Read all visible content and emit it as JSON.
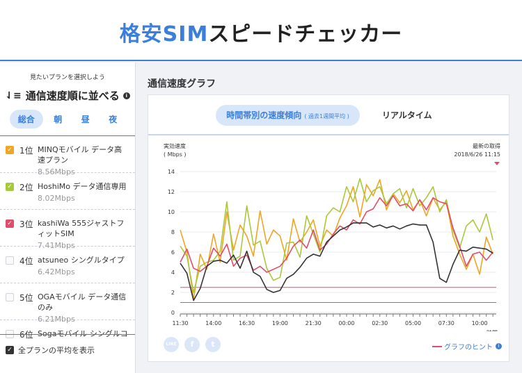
{
  "header": {
    "logo_prefix": "格安SIM",
    "logo_suffix": "スピードチェッカー"
  },
  "sidebar": {
    "select_label": "見たいプランを選択しよう",
    "sort_label": "通信速度順に並べる",
    "time_tabs": [
      "総合",
      "朝",
      "昼",
      "夜"
    ],
    "plans": [
      {
        "rank": "1位",
        "name": "MINQモバイル データ高速プラン",
        "speed": "8.56Mbps",
        "checked": true,
        "color": "#f0a524"
      },
      {
        "rank": "2位",
        "name": "HoshiMo データ通信専用",
        "speed": "8.02Mbps",
        "checked": true,
        "color": "#a8c93a"
      },
      {
        "rank": "3位",
        "name": "kashiWa 555ジャストフィットSIM",
        "speed": "7.41Mbps",
        "checked": true,
        "color": "#e24c6a"
      },
      {
        "rank": "4位",
        "name": "atsuneo シングルタイプ",
        "speed": "6.42Mbps",
        "checked": false,
        "color": ""
      },
      {
        "rank": "5位",
        "name": "OGAモバイル データ通信のみ",
        "speed": "6.21Mbps",
        "checked": false,
        "color": ""
      },
      {
        "rank": "6位",
        "name": "Sogaモバイル シングルコ",
        "speed": "",
        "checked": false,
        "color": ""
      }
    ],
    "show_average_label": "全プランの平均を表示"
  },
  "main": {
    "title": "通信速度グラフ",
    "tab_time": "時間帯別の速度傾向",
    "tab_time_sub": "( 過去1週間平均 )",
    "tab_realtime": "リアルタイム",
    "hint_label": "グラフのヒント",
    "social": [
      "LINE",
      "f",
      "t"
    ]
  },
  "chart_data": {
    "type": "line",
    "ylabel": "実効速度",
    "yunit": "( Mbps )",
    "xlabel": "時間",
    "update_label": "最新の取得",
    "update_time": "2018/6/26 11:15",
    "ylim": [
      0,
      14
    ],
    "yticks": [
      0,
      2,
      4,
      6,
      8,
      10,
      12,
      14
    ],
    "xlim": [
      11.5,
      35.25
    ],
    "xticks": [
      "11:30",
      "14:00",
      "16:30",
      "19:00",
      "21:30",
      "00:00",
      "02:30",
      "05:00",
      "07:30",
      "10:00"
    ],
    "xtick_hours": [
      11.5,
      14,
      16.5,
      19,
      21.5,
      24,
      26.5,
      29,
      31.5,
      34
    ],
    "ref_lines": [
      {
        "value": 2.5,
        "color": "#e24c6a"
      },
      {
        "value": 1.0,
        "color": "#e24c6a"
      }
    ],
    "series": [
      {
        "name": "MINQモバイル",
        "color": "#f0a524",
        "x": [
          11.5,
          12,
          12.5,
          13,
          13.5,
          14,
          14.5,
          15,
          15.5,
          16,
          16.5,
          17,
          17.5,
          18,
          18.5,
          19,
          19.5,
          20,
          20.5,
          21,
          21.5,
          22,
          22.5,
          23,
          23.5,
          24,
          24.5,
          25,
          25.5,
          26,
          26.5,
          27,
          27.5,
          28,
          28.5,
          29,
          29.5,
          30,
          30.5,
          31,
          31.5,
          32,
          32.5,
          33,
          33.5,
          34,
          34.5,
          35
        ],
        "y": [
          8.2,
          6.0,
          1.3,
          5.8,
          4.3,
          7.8,
          5.0,
          10.0,
          6.2,
          8.7,
          7.6,
          5.6,
          10.1,
          6.8,
          8.2,
          7.6,
          5.2,
          9.3,
          7.0,
          8.0,
          9.2,
          6.6,
          8.2,
          7.6,
          9.4,
          10.6,
          12.5,
          9.5,
          12.7,
          11.6,
          13.2,
          10.2,
          11.8,
          10.9,
          12.1,
          10.2,
          11.2,
          9.6,
          11.4,
          10.2,
          11.0,
          7.6,
          5.8,
          4.3,
          5.8,
          3.8,
          7.5,
          5.8
        ]
      },
      {
        "name": "HoshiMo",
        "color": "#a8c93a",
        "x": [
          11.5,
          12,
          12.5,
          13,
          13.5,
          14,
          14.5,
          15,
          15.5,
          16,
          16.5,
          17,
          17.5,
          18,
          18.5,
          19,
          19.5,
          20,
          20.5,
          21,
          21.5,
          22,
          22.5,
          23,
          23.5,
          24,
          24.5,
          25,
          25.5,
          26,
          26.5,
          27,
          27.5,
          28,
          28.5,
          29,
          29.5,
          30,
          30.5,
          31,
          31.5,
          32,
          32.5,
          33,
          33.5,
          34,
          34.5,
          35
        ],
        "y": [
          6.6,
          5.6,
          2.0,
          4.6,
          5.0,
          5.2,
          6.1,
          11.0,
          5.2,
          5.6,
          10.6,
          6.7,
          7.1,
          4.4,
          3.2,
          3.5,
          6.9,
          7.0,
          5.5,
          9.6,
          7.8,
          6.0,
          9.6,
          10.4,
          10.0,
          12.5,
          11.0,
          13.3,
          11.0,
          12.1,
          12.5,
          10.8,
          11.8,
          12.3,
          10.4,
          12.3,
          10.6,
          11.4,
          12.5,
          10.0,
          11.2,
          8.2,
          6.4,
          8.6,
          9.2,
          8.0,
          9.8,
          7.2
        ]
      },
      {
        "name": "kashiWa",
        "color": "#e24c6a",
        "x": [
          11.5,
          12,
          12.5,
          13,
          13.5,
          14,
          14.5,
          15,
          15.5,
          16,
          16.5,
          17,
          17.5,
          18,
          18.5,
          19,
          19.5,
          20,
          20.5,
          21,
          21.5,
          22,
          22.5,
          23,
          23.5,
          24,
          24.5,
          25,
          25.5,
          26,
          26.5,
          27,
          27.5,
          28,
          28.5,
          29,
          29.5,
          30,
          30.5,
          31,
          31.5,
          32,
          32.5,
          33,
          33.5,
          34,
          34.5,
          35
        ],
        "y": [
          5.0,
          6.3,
          4.4,
          4.1,
          4.6,
          6.4,
          5.6,
          6.8,
          4.6,
          5.4,
          5.7,
          4.2,
          4.6,
          4.0,
          4.3,
          4.6,
          5.4,
          6.6,
          7.2,
          6.4,
          8.2,
          6.2,
          6.8,
          7.8,
          8.6,
          8.2,
          9.2,
          8.8,
          10.0,
          10.3,
          11.4,
          10.6,
          11.6,
          10.6,
          10.8,
          10.1,
          11.2,
          10.2,
          11.4,
          11.0,
          10.8,
          8.4,
          6.6,
          4.6,
          5.8,
          6.0,
          5.2,
          6.0
        ]
      },
      {
        "name": "全プランの平均",
        "color": "#333333",
        "x": [
          11.5,
          12,
          12.5,
          13,
          13.5,
          14,
          14.5,
          15,
          15.5,
          16,
          16.5,
          17,
          17.5,
          18,
          18.5,
          19,
          19.5,
          20,
          20.5,
          21,
          21.5,
          22,
          22.5,
          23,
          23.5,
          24,
          24.5,
          25,
          25.5,
          26,
          26.5,
          27,
          27.5,
          28,
          28.5,
          29,
          29.5,
          30,
          30.5,
          31,
          31.5,
          32,
          32.5,
          33,
          33.5,
          34,
          34.5,
          35
        ],
        "y": [
          4.9,
          3.9,
          1.2,
          2.4,
          4.6,
          5.1,
          5.2,
          4.9,
          5.7,
          4.4,
          6.1,
          4.0,
          3.6,
          2.3,
          2.0,
          2.2,
          3.4,
          3.8,
          4.5,
          5.4,
          5.8,
          5.6,
          7.0,
          7.6,
          8.2,
          8.5,
          8.9,
          8.9,
          8.9,
          8.5,
          8.7,
          8.4,
          8.6,
          8.3,
          8.6,
          8.8,
          8.7,
          8.7,
          7.0,
          3.4,
          3.0,
          4.8,
          6.2,
          6.1,
          6.5,
          6.4,
          6.3,
          5.9
        ]
      }
    ]
  }
}
